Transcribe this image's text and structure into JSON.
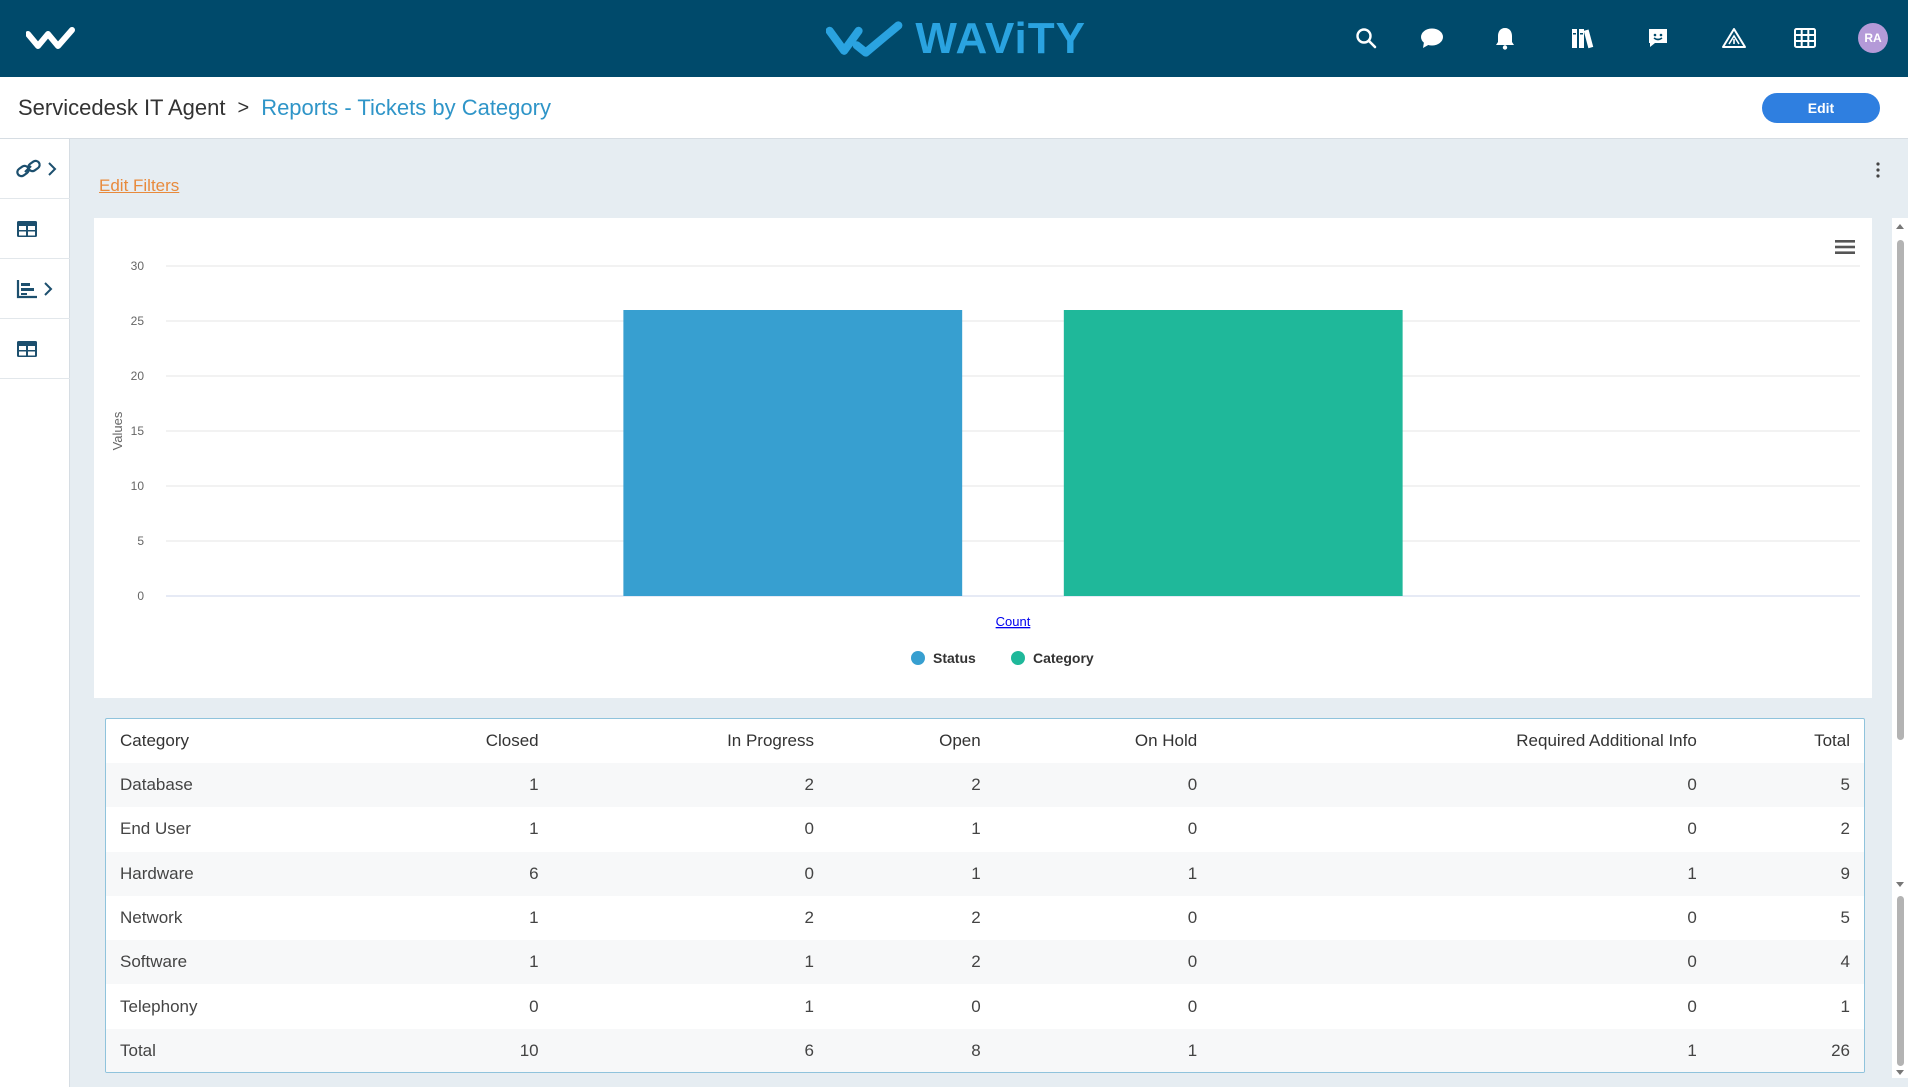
{
  "brand": {
    "name": "WAViTY"
  },
  "user": {
    "initials": "RA"
  },
  "header": {
    "crumb_root": "Servicedesk IT Agent",
    "crumb_separator": ">",
    "crumb_current": "Reports - Tickets by Category",
    "edit_label": "Edit"
  },
  "filters": {
    "edit_label": "Edit Filters"
  },
  "icons": {
    "top": [
      "search-icon",
      "chat-icon",
      "bell-icon",
      "library-icon",
      "feedback-icon",
      "alert-triangle-icon",
      "grid-icon"
    ],
    "rail": [
      "link-icon",
      "table-icon",
      "bar-chart-icon",
      "table-icon"
    ]
  },
  "colors": {
    "topbar": "#004a6b",
    "status": "#379fd0",
    "category": "#1fb89a",
    "accent": "#2f7fe0"
  },
  "chart_data": {
    "type": "bar",
    "categories": [
      "Count"
    ],
    "series": [
      {
        "name": "Status",
        "values": [
          26
        ],
        "color": "#379fd0"
      },
      {
        "name": "Category",
        "values": [
          26
        ],
        "color": "#1fb89a"
      }
    ],
    "ylabel": "Values",
    "ylim": [
      0,
      30
    ],
    "yticks": [
      0,
      5,
      10,
      15,
      20,
      25,
      30
    ],
    "legend": "bottom-center",
    "grid": true
  },
  "table": {
    "columns": [
      "Category",
      "Closed",
      "In Progress",
      "Open",
      "On Hold",
      "Required Additional Info",
      "Total"
    ],
    "rows": [
      [
        "Database",
        "1",
        "2",
        "2",
        "0",
        "0",
        "5"
      ],
      [
        "End User",
        "1",
        "0",
        "1",
        "0",
        "0",
        "2"
      ],
      [
        "Hardware",
        "6",
        "0",
        "1",
        "1",
        "1",
        "9"
      ],
      [
        "Network",
        "1",
        "2",
        "2",
        "0",
        "0",
        "5"
      ],
      [
        "Software",
        "1",
        "1",
        "2",
        "0",
        "0",
        "4"
      ],
      [
        "Telephony",
        "0",
        "1",
        "0",
        "0",
        "0",
        "1"
      ],
      [
        "Total",
        "10",
        "6",
        "8",
        "1",
        "1",
        "26"
      ]
    ]
  }
}
